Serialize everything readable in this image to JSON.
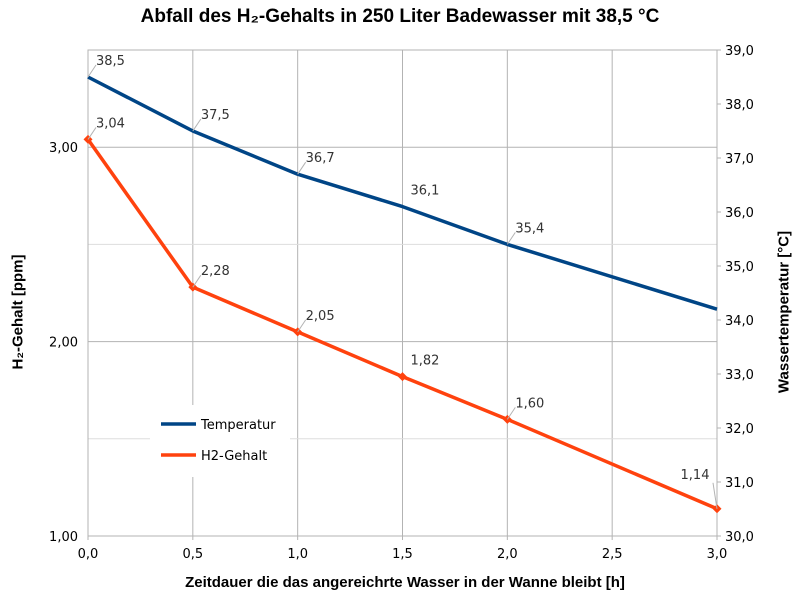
{
  "chart_data": {
    "type": "line",
    "title": "Abfall des H₂-Gehalts in 250 Liter Badewasser mit 38,5  °C",
    "xlabel": "Zeitdauer die das angereichrte Wasser in der Wanne bleibt    [h]",
    "ylabel_left": "H₂-Gehalt    [ppm]",
    "ylabel_right": "Wassertemperatur     [°C]",
    "xlim": [
      0,
      3
    ],
    "ylim_left": [
      1,
      3.5
    ],
    "ylim_right": [
      30,
      39
    ],
    "x_ticks": [
      "0,0",
      "0,5",
      "1,0",
      "1,5",
      "2,0",
      "2,5",
      "3,0"
    ],
    "y_left_ticks": [
      "1,00",
      "2,00",
      "3,00"
    ],
    "y_right_ticks": [
      "30,0",
      "31,0",
      "32,0",
      "33,0",
      "34,0",
      "35,0",
      "36,0",
      "37,0",
      "38,0",
      "39,0"
    ],
    "grid": true,
    "legend_position": "left-middle",
    "series": [
      {
        "name": "Temperatur",
        "axis": "right",
        "color": "#004586",
        "x": [
          0,
          0.5,
          1,
          1.5,
          2,
          3
        ],
        "values": [
          38.5,
          37.5,
          36.7,
          36.1,
          35.4,
          34.2
        ],
        "labels": [
          "38,5",
          "37,5",
          "36,7",
          "36,1",
          "35,4",
          ""
        ]
      },
      {
        "name": "H2-Gehalt",
        "axis": "left",
        "color": "#ff420e",
        "x": [
          0,
          0.5,
          1,
          1.5,
          2,
          3
        ],
        "values": [
          3.04,
          2.28,
          2.05,
          1.82,
          1.6,
          1.14
        ],
        "labels": [
          "3,04",
          "2,28",
          "2,05",
          "1,82",
          "1,60",
          "1,14"
        ]
      }
    ]
  }
}
